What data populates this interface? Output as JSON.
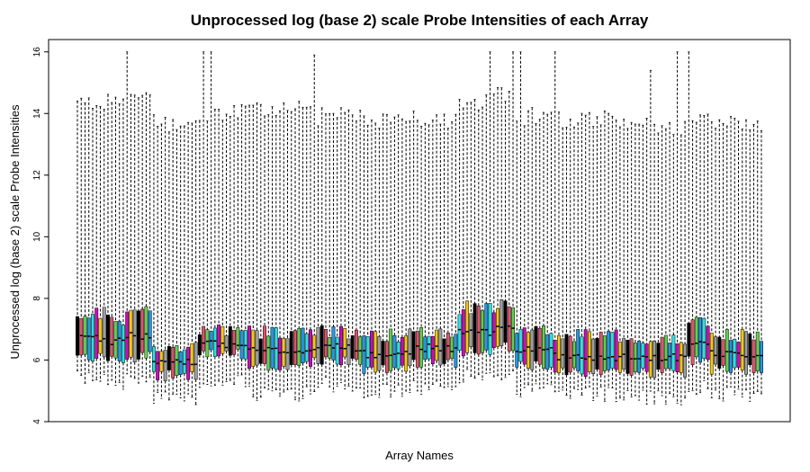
{
  "chart_data": {
    "type": "boxplot",
    "title": "Unprocessed log (base 2) scale Probe Intensities of each Array",
    "xlabel": "Array Names",
    "ylabel": "Unprocessed log (base 2) scale Probe Intensities",
    "ylim": [
      4,
      16.4
    ],
    "yticks": [
      4,
      6,
      8,
      10,
      12,
      14,
      16
    ],
    "n_arrays": 180,
    "grid": false,
    "legend": "none",
    "whisker_color": "#000000",
    "box_colors": [
      "#000000",
      "#DF536B",
      "#61D04F",
      "#2297E6",
      "#28E2E5",
      "#CD0BBC",
      "#F5C710",
      "#9E9E9E"
    ],
    "segments": [
      {
        "from": 0,
        "to": 8,
        "q1": 6.1,
        "median": 6.7,
        "q3": 7.5,
        "lower": 5.4,
        "upper": 14.3
      },
      {
        "from": 8,
        "to": 13,
        "q1": 6.0,
        "median": 6.6,
        "q3": 7.3,
        "lower": 5.3,
        "upper": 14.6
      },
      {
        "from": 13,
        "to": 20,
        "q1": 6.1,
        "median": 6.8,
        "q3": 7.6,
        "lower": 5.4,
        "upper": 14.5
      },
      {
        "from": 20,
        "to": 32,
        "q1": 5.5,
        "median": 5.9,
        "q3": 6.4,
        "lower": 4.8,
        "upper": 13.7
      },
      {
        "from": 32,
        "to": 45,
        "q1": 6.2,
        "median": 6.5,
        "q3": 7.0,
        "lower": 5.3,
        "upper": 14.0
      },
      {
        "from": 45,
        "to": 62,
        "q1": 5.8,
        "median": 6.3,
        "q3": 6.9,
        "lower": 4.9,
        "upper": 14.1
      },
      {
        "from": 62,
        "to": 75,
        "q1": 6.0,
        "median": 6.4,
        "q3": 6.9,
        "lower": 5.2,
        "upper": 13.9
      },
      {
        "from": 75,
        "to": 88,
        "q1": 5.7,
        "median": 6.2,
        "q3": 6.8,
        "lower": 5.0,
        "upper": 13.8
      },
      {
        "from": 88,
        "to": 100,
        "q1": 5.9,
        "median": 6.4,
        "q3": 6.9,
        "lower": 5.1,
        "upper": 13.8
      },
      {
        "from": 100,
        "to": 110,
        "q1": 6.3,
        "median": 6.9,
        "q3": 7.7,
        "lower": 5.5,
        "upper": 14.4
      },
      {
        "from": 110,
        "to": 115,
        "q1": 6.4,
        "median": 7.0,
        "q3": 7.8,
        "lower": 5.6,
        "upper": 14.6
      },
      {
        "from": 115,
        "to": 125,
        "q1": 5.8,
        "median": 6.3,
        "q3": 6.9,
        "lower": 5.0,
        "upper": 13.9
      },
      {
        "from": 125,
        "to": 145,
        "q1": 5.6,
        "median": 6.1,
        "q3": 6.8,
        "lower": 4.9,
        "upper": 13.8
      },
      {
        "from": 145,
        "to": 160,
        "q1": 5.6,
        "median": 6.1,
        "q3": 6.7,
        "lower": 4.8,
        "upper": 13.6
      },
      {
        "from": 160,
        "to": 166,
        "q1": 6.0,
        "median": 6.6,
        "q3": 7.2,
        "lower": 5.1,
        "upper": 14.0
      },
      {
        "from": 166,
        "to": 180,
        "q1": 5.7,
        "median": 6.2,
        "q3": 6.8,
        "lower": 4.9,
        "upper": 13.7
      }
    ],
    "tall_whiskers": [
      {
        "index": 13,
        "upper": 16.0
      },
      {
        "index": 33,
        "upper": 16.0
      },
      {
        "index": 35,
        "upper": 16.0
      },
      {
        "index": 62,
        "upper": 15.9
      },
      {
        "index": 108,
        "upper": 16.0
      },
      {
        "index": 114,
        "upper": 16.0
      },
      {
        "index": 116,
        "upper": 16.0
      },
      {
        "index": 125,
        "upper": 16.0
      },
      {
        "index": 150,
        "upper": 15.4
      },
      {
        "index": 157,
        "upper": 16.0
      },
      {
        "index": 160,
        "upper": 16.0
      }
    ]
  }
}
